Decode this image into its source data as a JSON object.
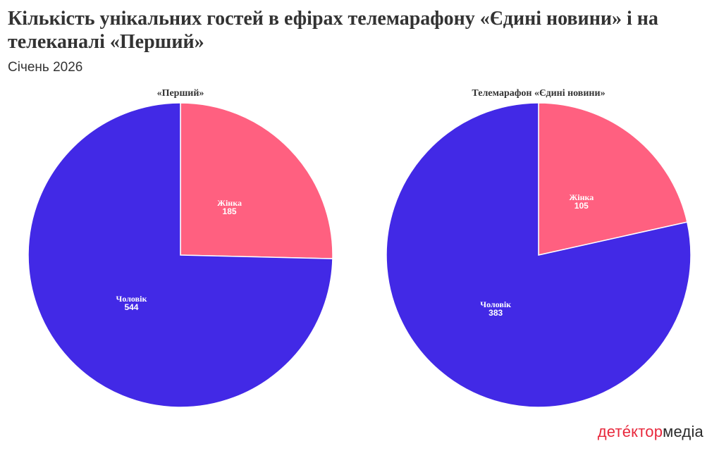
{
  "header": {
    "title": "Кількість унікальних гостей в ефірах телемарафону «Єдині новини» і на телеканалі «Перший»",
    "subtitle": "Січень 2026"
  },
  "brand": {
    "part1": "детéктор",
    "part2": "медіа"
  },
  "colors": {
    "male": "#4229e6",
    "female": "#ff6080"
  },
  "chart_data": [
    {
      "type": "pie",
      "title": "«Перший»",
      "slices": [
        {
          "label": "Жінка",
          "value": 185,
          "color": "#ff6080"
        },
        {
          "label": "Чоловік",
          "value": 544,
          "color": "#4229e6"
        }
      ]
    },
    {
      "type": "pie",
      "title": "Телемарафон «Єдині новини»",
      "slices": [
        {
          "label": "Жінка",
          "value": 105,
          "color": "#ff6080"
        },
        {
          "label": "Чоловік",
          "value": 383,
          "color": "#4229e6"
        }
      ]
    }
  ]
}
